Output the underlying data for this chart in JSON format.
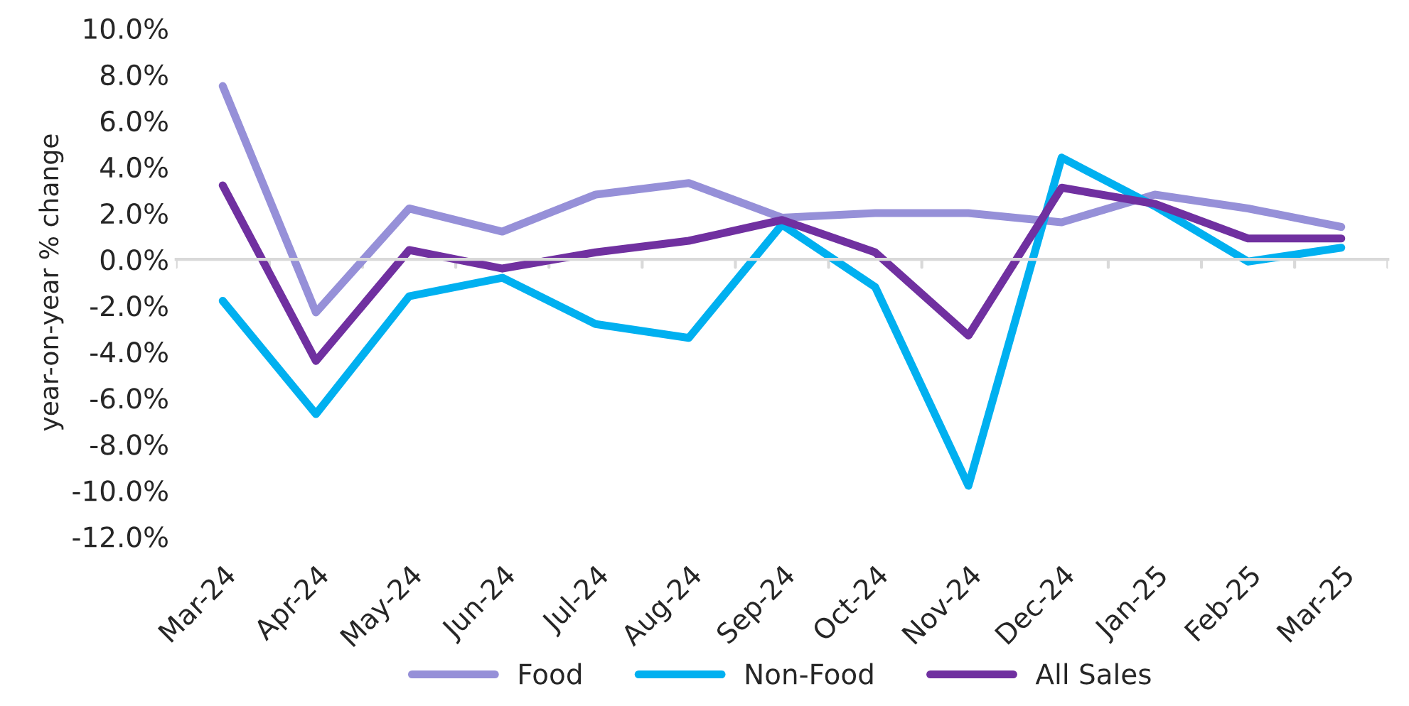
{
  "chart_data": {
    "type": "line",
    "ylabel": "year-on-year % change",
    "categories": [
      "Mar-24",
      "Apr-24",
      "May-24",
      "Jun-24",
      "Jul-24",
      "Aug-24",
      "Sep-24",
      "Oct-24",
      "Nov-24",
      "Dec-24",
      "Jan-25",
      "Feb-25",
      "Mar-25"
    ],
    "series": [
      {
        "name": "Food",
        "color": "#9690d8",
        "values": [
          7.5,
          -2.3,
          2.2,
          1.2,
          2.8,
          3.3,
          1.8,
          2.0,
          2.0,
          1.6,
          2.8,
          2.2,
          1.4
        ]
      },
      {
        "name": "Non-Food",
        "color": "#00b0f0",
        "values": [
          -1.8,
          -6.7,
          -1.6,
          -0.8,
          -2.8,
          -3.4,
          1.5,
          -1.2,
          -9.8,
          4.4,
          2.3,
          -0.1,
          0.5
        ]
      },
      {
        "name": "All Sales",
        "color": "#7030a0",
        "values": [
          3.2,
          -4.4,
          0.4,
          -0.4,
          0.3,
          0.8,
          1.7,
          0.3,
          -3.3,
          3.1,
          2.4,
          0.9,
          0.9
        ]
      }
    ],
    "ylim": [
      -12,
      10
    ],
    "yticks": [
      {
        "value": -12,
        "label": "-12.0%"
      },
      {
        "value": -10,
        "label": "-10.0%"
      },
      {
        "value": -8,
        "label": "-8.0%"
      },
      {
        "value": -6,
        "label": "-6.0%"
      },
      {
        "value": -4,
        "label": "-4.0%"
      },
      {
        "value": -2,
        "label": "-2.0%"
      },
      {
        "value": 0,
        "label": "0.0%"
      },
      {
        "value": 2,
        "label": "2.0%"
      },
      {
        "value": 4,
        "label": "4.0%"
      },
      {
        "value": 6,
        "label": "6.0%"
      },
      {
        "value": 8,
        "label": "8.0%"
      },
      {
        "value": 10,
        "label": "10.0%"
      }
    ],
    "legend": "bottom",
    "marker": "none",
    "line_style": "solid"
  }
}
